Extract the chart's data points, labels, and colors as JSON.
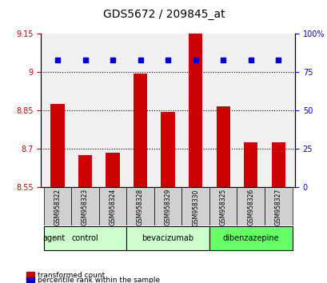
{
  "title": "GDS5672 / 209845_at",
  "samples": [
    "GSM958322",
    "GSM958323",
    "GSM958324",
    "GSM958328",
    "GSM958329",
    "GSM958330",
    "GSM958325",
    "GSM958326",
    "GSM958327"
  ],
  "bar_values": [
    8.875,
    8.675,
    8.685,
    8.995,
    8.845,
    9.15,
    8.865,
    8.725,
    8.725
  ],
  "percentile_values": [
    83,
    83,
    83,
    83,
    83,
    83,
    83,
    83,
    83
  ],
  "bar_color": "#cc0000",
  "dot_color": "#0000cc",
  "ylim_left": [
    8.55,
    9.15
  ],
  "ylim_right": [
    0,
    100
  ],
  "yticks_left": [
    8.55,
    8.7,
    8.85,
    9.0,
    9.15
  ],
  "ytick_labels_left": [
    "8.55",
    "8.7",
    "8.85",
    "9",
    "9.15"
  ],
  "yticks_right": [
    0,
    25,
    50,
    75,
    100
  ],
  "ytick_labels_right": [
    "0",
    "25",
    "50",
    "75",
    "100%"
  ],
  "hlines": [
    8.7,
    8.85,
    9.0
  ],
  "groups": [
    {
      "label": "control",
      "start": 0,
      "end": 3,
      "color": "#ccffcc"
    },
    {
      "label": "bevacizumab",
      "start": 3,
      "end": 6,
      "color": "#ccffcc"
    },
    {
      "label": "dibenzazepine",
      "start": 6,
      "end": 9,
      "color": "#66ff66"
    }
  ],
  "group_label_prefix": "agent",
  "legend_bar_label": "transformed count",
  "legend_dot_label": "percentile rank within the sample",
  "bar_width": 0.5,
  "baseline": 8.55
}
